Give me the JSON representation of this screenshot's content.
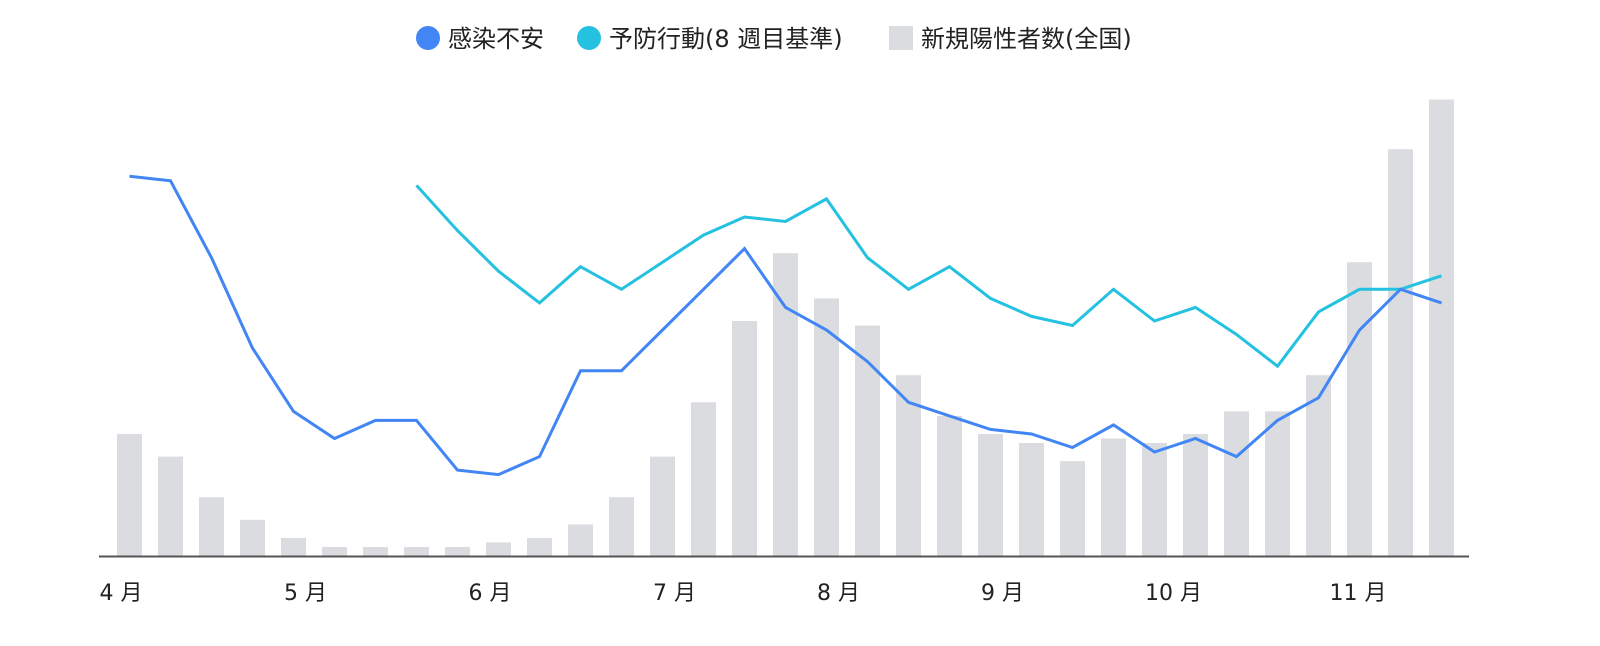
{
  "chart_data": {
    "type": "bar",
    "title": "",
    "xlabel": "",
    "ylabel": "",
    "legend_position": "top-center",
    "grid": false,
    "ylim": [
      0,
      100
    ],
    "x_tick_labels": [
      {
        "label": "4 月",
        "index": 0
      },
      {
        "label": "5 月",
        "index": 4.5
      },
      {
        "label": "6 月",
        "index": 9
      },
      {
        "label": "7 月",
        "index": 13.5
      },
      {
        "label": "8 月",
        "index": 17.5
      },
      {
        "label": "9 月",
        "index": 21.5
      },
      {
        "label": "10 月",
        "index": 25.5
      },
      {
        "label": "11 月",
        "index": 30
      }
    ],
    "series": [
      {
        "name": "感染不安",
        "type": "line",
        "color": "#4285f4",
        "values": [
          84,
          83,
          66,
          46,
          32,
          26,
          30,
          30,
          19,
          18,
          22,
          41,
          41,
          50,
          59,
          68,
          55,
          50,
          43,
          34,
          31,
          28,
          27,
          24,
          29,
          23,
          26,
          22,
          30,
          35,
          50,
          59,
          56
        ]
      },
      {
        "name": "予防行動(8 週目基準)",
        "type": "line",
        "color": "#24c1e0",
        "values": [
          null,
          null,
          null,
          null,
          null,
          null,
          null,
          82,
          72,
          63,
          56,
          64,
          59,
          65,
          71,
          75,
          74,
          79,
          66,
          59,
          64,
          57,
          53,
          51,
          59,
          52,
          55,
          49,
          42,
          54,
          59,
          59,
          62
        ]
      },
      {
        "name": "新規陽性者数(全国)",
        "type": "bar",
        "color": "#dadce0",
        "values": [
          27,
          22,
          13,
          8,
          4,
          2,
          2,
          2,
          2,
          3,
          4,
          7,
          13,
          22,
          34,
          52,
          67,
          57,
          51,
          40,
          31,
          27,
          25,
          21,
          26,
          25,
          27,
          32,
          32,
          40,
          65,
          90,
          101
        ]
      }
    ]
  }
}
